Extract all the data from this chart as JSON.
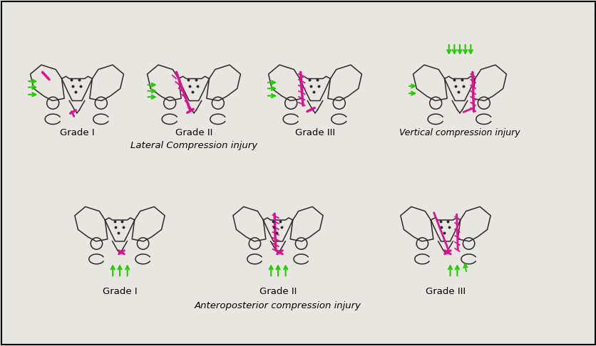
{
  "bg_color": "#e8e6e0",
  "dark_color": "#2a2a2a",
  "pink_color": "#e01090",
  "green_color": "#22cc00",
  "title_lc": "Lateral Compression injury",
  "title_vc": "Vertical compression injury",
  "title_ap": "Anteroposterior compression injury",
  "grade1": "Grade I",
  "grade2": "Grade II",
  "grade3": "Grade III",
  "figsize": [
    8.37,
    4.86
  ]
}
